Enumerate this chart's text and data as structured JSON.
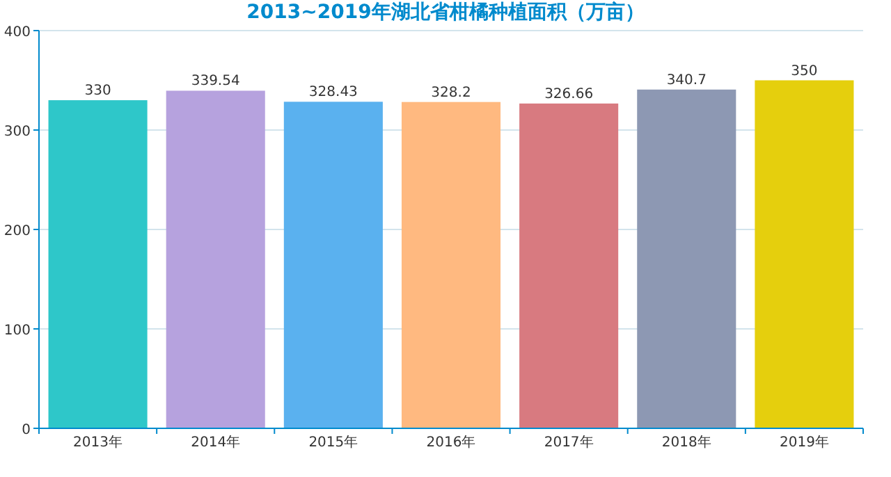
{
  "chart_data": {
    "type": "bar",
    "title": "2013~2019年湖北省柑橘种植面积（万亩）",
    "categories": [
      "2013年",
      "2014年",
      "2015年",
      "2016年",
      "2017年",
      "2018年",
      "2019年"
    ],
    "values": [
      330,
      339.54,
      328.43,
      328.2,
      326.66,
      340.7,
      350
    ],
    "colors": [
      "#2ec7c9",
      "#b6a2de",
      "#5ab1ef",
      "#ffb980",
      "#d87a80",
      "#8d98b3",
      "#e5cf0d"
    ],
    "ylim": [
      0,
      400
    ],
    "yticks": [
      0,
      100,
      200,
      300,
      400
    ],
    "grid": "y",
    "data_labels": true
  }
}
